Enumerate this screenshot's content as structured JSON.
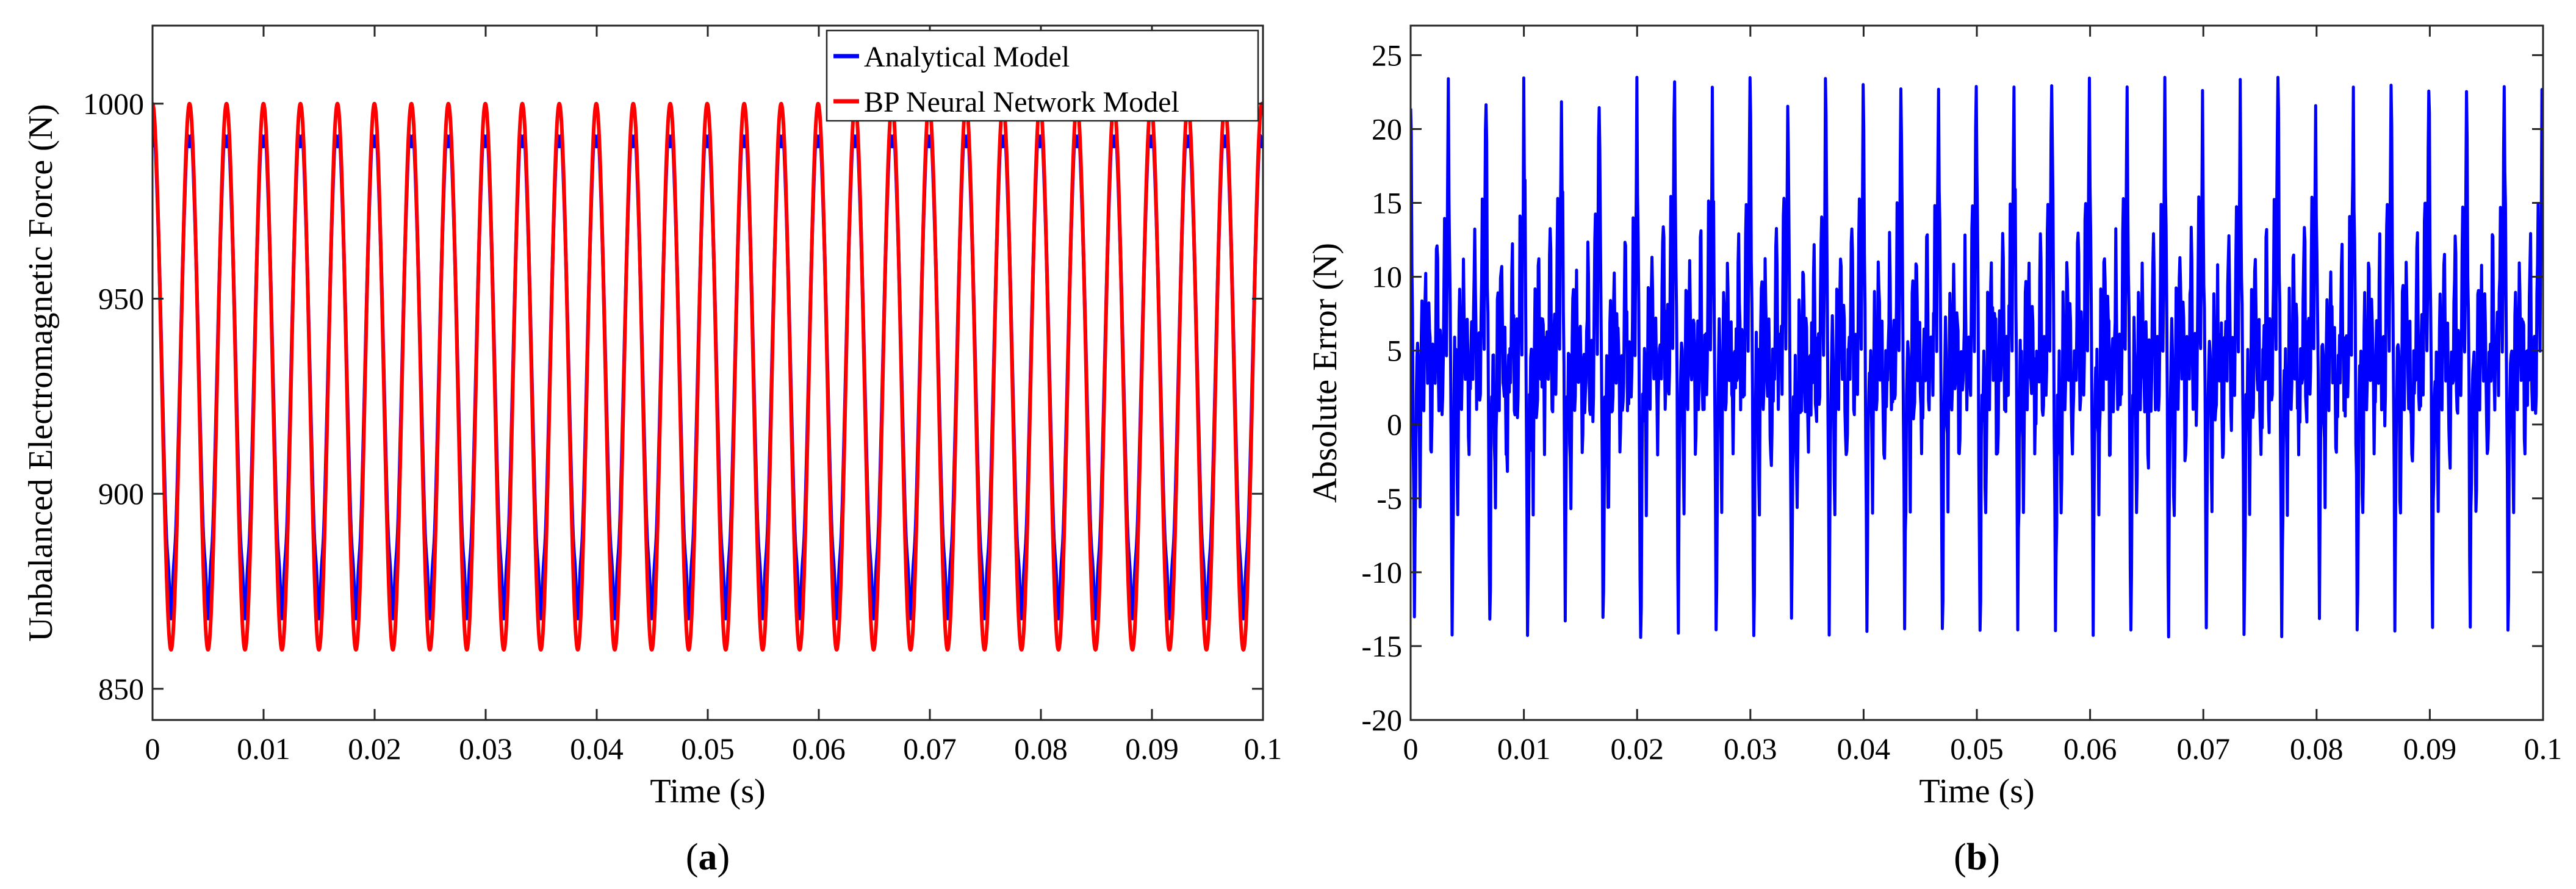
{
  "chart_data": [
    {
      "type": "line",
      "panel_label": "a",
      "xlabel": "Time (s)",
      "ylabel": "Unbalanced Electromagnetic Force (N)",
      "xlim": [
        0,
        0.1
      ],
      "ylim": [
        842,
        1020
      ],
      "xticks": [
        0,
        0.01,
        0.02,
        0.03,
        0.04,
        0.05,
        0.06,
        0.07,
        0.08,
        0.09,
        0.1
      ],
      "xtick_labels": [
        "0",
        "0.01",
        "0.02",
        "0.03",
        "0.04",
        "0.05",
        "0.06",
        "0.07",
        "0.08",
        "0.09",
        "0.1"
      ],
      "yticks": [
        850,
        900,
        950,
        1000
      ],
      "ytick_labels": [
        "850",
        "900",
        "950",
        "1000"
      ],
      "grid": false,
      "legend_position": "top-right",
      "period_s": 0.00333,
      "series": [
        {
          "name": "Analytical Model",
          "color": "#0000ff",
          "max": 997,
          "min": 868,
          "ripple": 8,
          "x": [
            0,
            0.0003,
            0.0005,
            0.0008,
            0.001,
            0.0012,
            0.0015,
            0.0017,
            0.002,
            0.0022,
            0.0025,
            0.0027,
            0.003,
            0.0033
          ],
          "values": [
            997,
            987,
            997,
            975,
            950,
            920,
            893,
            875,
            868,
            893,
            920,
            960,
            990,
            997
          ]
        },
        {
          "name": "BP Neural Network Model",
          "color": "#ff0000",
          "max": 1000,
          "min": 860,
          "x": [
            0,
            0.0004,
            0.0008,
            0.0012,
            0.0017,
            0.0021,
            0.0025,
            0.0029,
            0.0033
          ],
          "values": [
            1000,
            990,
            958,
            905,
            860,
            905,
            958,
            990,
            1000
          ]
        }
      ]
    },
    {
      "type": "line",
      "panel_label": "b",
      "xlabel": "Time (s)",
      "ylabel": "Absolute Error (N)",
      "xlim": [
        0,
        0.1
      ],
      "ylim": [
        -20,
        27
      ],
      "xticks": [
        0,
        0.01,
        0.02,
        0.03,
        0.04,
        0.05,
        0.06,
        0.07,
        0.08,
        0.09,
        0.1
      ],
      "xtick_labels": [
        "0",
        "0.01",
        "0.02",
        "0.03",
        "0.04",
        "0.05",
        "0.06",
        "0.07",
        "0.08",
        "0.09",
        "0.1"
      ],
      "yticks": [
        -20,
        -15,
        -10,
        -5,
        0,
        5,
        10,
        15,
        20,
        25
      ],
      "ytick_labels": [
        "-20",
        "-15",
        "-10",
        "-5",
        "0",
        "5",
        "10",
        "15",
        "20",
        "25"
      ],
      "grid": false,
      "series": [
        {
          "name": "Absolute Error",
          "color": "#0000ff",
          "period_s": 0.00333,
          "peak_max": 23.5,
          "trough_min": -15,
          "cycle_shape": {
            "x_frac": [
              0,
              0.05,
              0.1,
              0.15,
              0.2,
              0.25,
              0.3,
              0.35,
              0.4,
              0.45,
              0.5,
              0.55,
              0.6,
              0.65,
              0.7,
              0.75,
              0.8,
              0.85,
              0.9,
              0.95,
              1.0
            ],
            "values": [
              23,
              8,
              -14,
              2,
              5,
              -6,
              9,
              1,
              11,
              3,
              7,
              -2,
              5,
              3,
              13,
              1,
              6,
              2,
              15,
              5,
              23
            ]
          }
        }
      ]
    }
  ]
}
